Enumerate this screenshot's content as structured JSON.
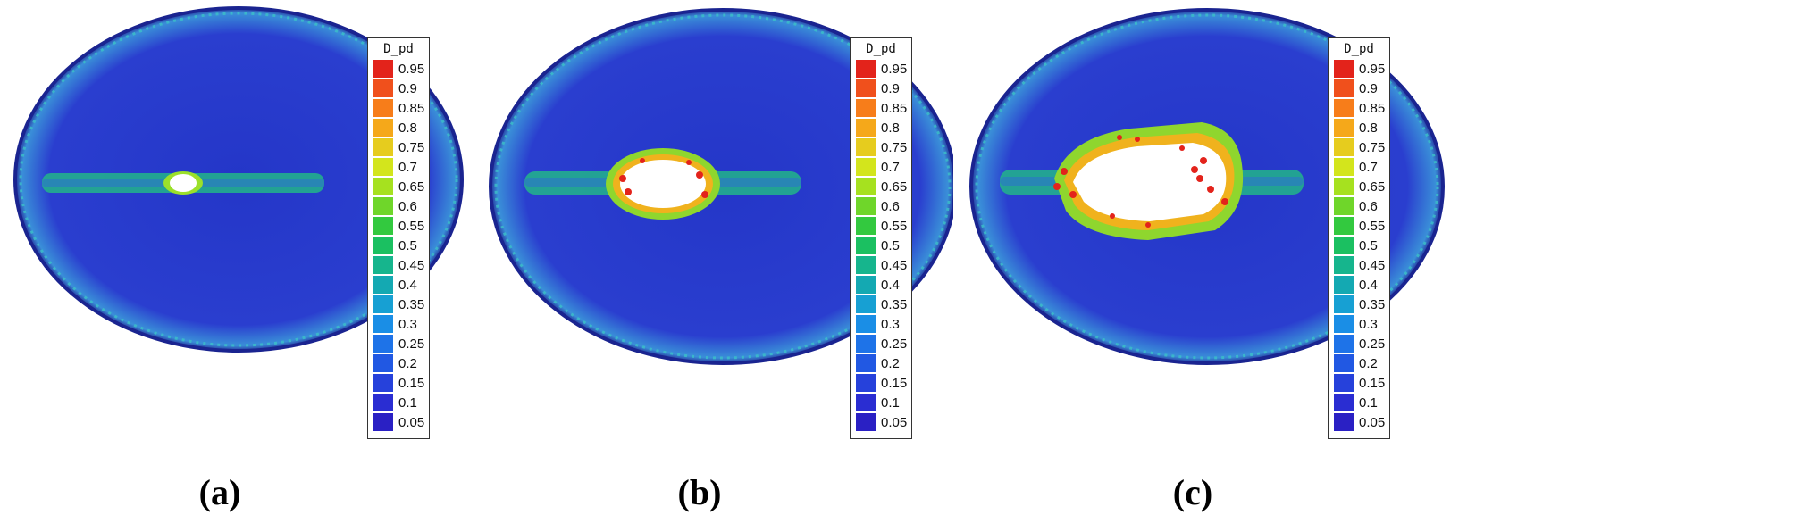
{
  "figures": [
    {
      "caption": "(a)",
      "hole": "small",
      "colorbar_title": "D_pd"
    },
    {
      "caption": "(b)",
      "hole": "medium",
      "colorbar_title": "D_pd"
    },
    {
      "caption": "(c)",
      "hole": "large",
      "colorbar_title": "D_pd"
    }
  ],
  "colorbar": {
    "labels": [
      "0.95",
      "0.9",
      "0.85",
      "0.8",
      "0.75",
      "0.7",
      "0.65",
      "0.6",
      "0.55",
      "0.5",
      "0.45",
      "0.4",
      "0.35",
      "0.3",
      "0.25",
      "0.2",
      "0.15",
      "0.1",
      "0.05"
    ],
    "colors": [
      "#e3231b",
      "#f0501c",
      "#f77d1a",
      "#f5a81a",
      "#e6cc1e",
      "#d3e51c",
      "#a6e11f",
      "#6fd62a",
      "#33c93f",
      "#1bc061",
      "#16b58d",
      "#14a9b2",
      "#17a0d3",
      "#1a8ee6",
      "#1e73e8",
      "#2158e3",
      "#2641db",
      "#2a2dd2",
      "#2a20c4"
    ]
  }
}
